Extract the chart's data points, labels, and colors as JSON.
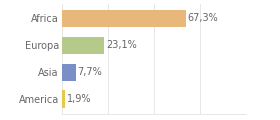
{
  "categories": [
    "Africa",
    "Europa",
    "Asia",
    "America"
  ],
  "values": [
    67.3,
    23.1,
    7.7,
    1.9
  ],
  "labels": [
    "67,3%",
    "23,1%",
    "7,7%",
    "1,9%"
  ],
  "bar_colors": [
    "#e8b87a",
    "#b5c98a",
    "#7b8fc7",
    "#e8c84a"
  ],
  "background_color": "#ffffff",
  "xlim": [
    0,
    100
  ],
  "bar_height": 0.65,
  "label_fontsize": 7.0,
  "category_fontsize": 7.0,
  "text_color": "#666666",
  "grid_color": "#dddddd"
}
